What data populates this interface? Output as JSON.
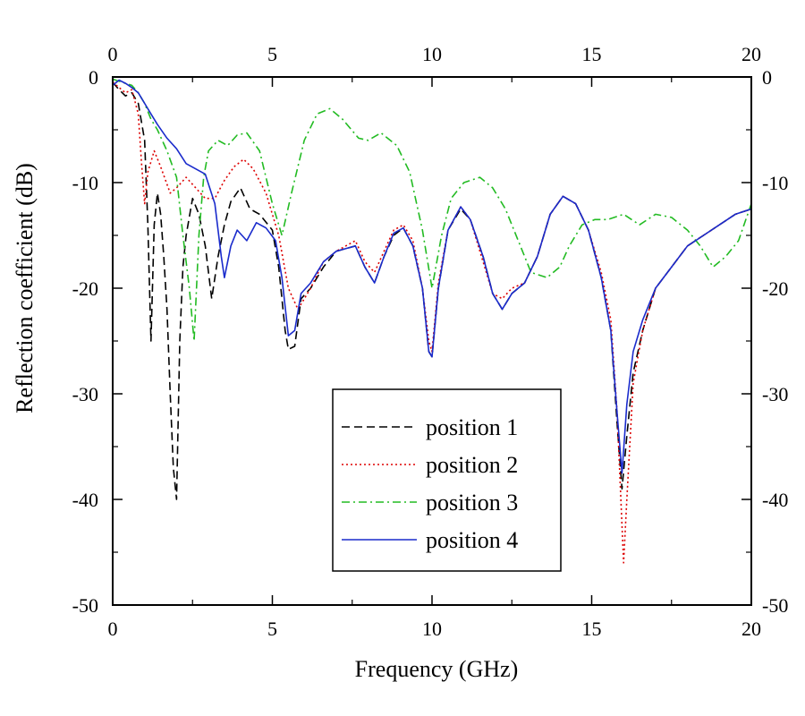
{
  "chart_data": {
    "type": "line",
    "title": "",
    "xlabel": "Frequency (GHz)",
    "ylabel": "Reflection coefficient (dB)",
    "xlim": [
      0,
      20
    ],
    "ylim": [
      -50,
      0
    ],
    "x_ticks": [
      0,
      5,
      10,
      15,
      20
    ],
    "y_ticks": [
      0,
      -10,
      -20,
      -30,
      -40,
      -50
    ],
    "x_tick_labels": [
      "0",
      "5",
      "10",
      "15",
      "20"
    ],
    "y_tick_labels": [
      "0",
      "-10",
      "-20",
      "-30",
      "-40",
      "-50"
    ],
    "top_axis_mirror": true,
    "right_axis_mirror": true,
    "grid": false,
    "legend_position": "bottom-center",
    "series": [
      {
        "name": "position 1",
        "color": "#000000",
        "dash": "dashed",
        "points": [
          [
            0,
            -0.5
          ],
          [
            0.2,
            -1.2
          ],
          [
            0.4,
            -1.8
          ],
          [
            0.6,
            -1.5
          ],
          [
            0.8,
            -2.5
          ],
          [
            1.0,
            -6
          ],
          [
            1.1,
            -14
          ],
          [
            1.2,
            -25
          ],
          [
            1.3,
            -14
          ],
          [
            1.4,
            -11
          ],
          [
            1.5,
            -13
          ],
          [
            1.6,
            -17
          ],
          [
            1.7,
            -22
          ],
          [
            1.8,
            -30
          ],
          [
            1.9,
            -37
          ],
          [
            2.0,
            -40
          ],
          [
            2.1,
            -25
          ],
          [
            2.2,
            -18
          ],
          [
            2.3,
            -15
          ],
          [
            2.5,
            -11.5
          ],
          [
            2.7,
            -13
          ],
          [
            2.9,
            -16
          ],
          [
            3.1,
            -21
          ],
          [
            3.3,
            -17
          ],
          [
            3.5,
            -14
          ],
          [
            3.7,
            -11.8
          ],
          [
            4.0,
            -10.5
          ],
          [
            4.3,
            -12.5
          ],
          [
            4.6,
            -13
          ],
          [
            5.0,
            -14.5
          ],
          [
            5.2,
            -18
          ],
          [
            5.4,
            -24
          ],
          [
            5.5,
            -25.8
          ],
          [
            5.7,
            -25.5
          ],
          [
            5.9,
            -21
          ],
          [
            6.2,
            -20
          ],
          [
            6.6,
            -18
          ],
          [
            7.0,
            -16.5
          ],
          [
            7.6,
            -16
          ],
          [
            7.9,
            -18
          ],
          [
            8.2,
            -19.5
          ],
          [
            8.5,
            -17
          ],
          [
            8.8,
            -15
          ],
          [
            9.1,
            -14.3
          ],
          [
            9.4,
            -16
          ],
          [
            9.7,
            -20
          ],
          [
            9.9,
            -26
          ],
          [
            10.0,
            -26.5
          ],
          [
            10.2,
            -20
          ],
          [
            10.5,
            -14.5
          ],
          [
            10.9,
            -12.5
          ],
          [
            11.2,
            -13.5
          ],
          [
            11.6,
            -17
          ],
          [
            11.9,
            -20.5
          ],
          [
            12.2,
            -22
          ],
          [
            12.5,
            -20.5
          ],
          [
            12.9,
            -19.5
          ],
          [
            13.3,
            -17
          ],
          [
            13.7,
            -13
          ],
          [
            14.1,
            -11.3
          ],
          [
            14.5,
            -12
          ],
          [
            14.9,
            -14.5
          ],
          [
            15.3,
            -19
          ],
          [
            15.6,
            -24
          ],
          [
            15.8,
            -33
          ],
          [
            15.95,
            -39
          ],
          [
            16.1,
            -34
          ],
          [
            16.3,
            -28
          ],
          [
            16.6,
            -24
          ],
          [
            17.0,
            -20
          ],
          [
            17.5,
            -18
          ],
          [
            18.0,
            -16
          ],
          [
            18.5,
            -15
          ],
          [
            19.0,
            -14
          ],
          [
            19.5,
            -13
          ],
          [
            20.0,
            -12.5
          ]
        ]
      },
      {
        "name": "position 2",
        "color": "#dd0000",
        "dash": "dotted",
        "points": [
          [
            0,
            -0.5
          ],
          [
            0.2,
            -1.0
          ],
          [
            0.4,
            -1.5
          ],
          [
            0.6,
            -1.2
          ],
          [
            0.8,
            -3.5
          ],
          [
            0.9,
            -8
          ],
          [
            1.0,
            -12
          ],
          [
            1.1,
            -9
          ],
          [
            1.3,
            -7
          ],
          [
            1.5,
            -8.5
          ],
          [
            1.8,
            -11
          ],
          [
            2.0,
            -10.5
          ],
          [
            2.3,
            -9.5
          ],
          [
            2.6,
            -10.5
          ],
          [
            2.9,
            -11.5
          ],
          [
            3.2,
            -11.5
          ],
          [
            3.5,
            -9.8
          ],
          [
            3.8,
            -8.5
          ],
          [
            4.1,
            -7.8
          ],
          [
            4.4,
            -8.7
          ],
          [
            4.8,
            -11
          ],
          [
            5.2,
            -15
          ],
          [
            5.5,
            -20
          ],
          [
            5.8,
            -22
          ],
          [
            6.2,
            -20
          ],
          [
            6.6,
            -17.5
          ],
          [
            7.0,
            -16.5
          ],
          [
            7.6,
            -15.5
          ],
          [
            7.9,
            -17.5
          ],
          [
            8.2,
            -18.5
          ],
          [
            8.5,
            -16.5
          ],
          [
            8.8,
            -14.5
          ],
          [
            9.1,
            -14
          ],
          [
            9.4,
            -15.5
          ],
          [
            9.7,
            -20
          ],
          [
            9.9,
            -25
          ],
          [
            10.0,
            -26
          ],
          [
            10.2,
            -19.5
          ],
          [
            10.5,
            -14.5
          ],
          [
            10.9,
            -12.3
          ],
          [
            11.2,
            -13.5
          ],
          [
            11.6,
            -17.5
          ],
          [
            11.9,
            -20.5
          ],
          [
            12.2,
            -21
          ],
          [
            12.5,
            -20
          ],
          [
            12.9,
            -19.5
          ],
          [
            13.3,
            -17
          ],
          [
            13.7,
            -13
          ],
          [
            14.1,
            -11.3
          ],
          [
            14.5,
            -12
          ],
          [
            14.9,
            -14.5
          ],
          [
            15.3,
            -18.5
          ],
          [
            15.6,
            -23
          ],
          [
            15.8,
            -32
          ],
          [
            16.0,
            -46
          ],
          [
            16.1,
            -40
          ],
          [
            16.3,
            -29
          ],
          [
            16.6,
            -24
          ],
          [
            17.0,
            -20
          ],
          [
            17.5,
            -18
          ],
          [
            18.0,
            -16
          ],
          [
            18.5,
            -15
          ],
          [
            19.0,
            -14
          ],
          [
            19.5,
            -13
          ],
          [
            20.0,
            -12.5
          ]
        ]
      },
      {
        "name": "position 3",
        "color": "#22bb22",
        "dash": "dashdot",
        "points": [
          [
            0,
            -0.2
          ],
          [
            0.3,
            -0.5
          ],
          [
            0.6,
            -0.8
          ],
          [
            0.8,
            -1.5
          ],
          [
            1.0,
            -2.5
          ],
          [
            1.2,
            -4
          ],
          [
            1.4,
            -5
          ],
          [
            1.7,
            -7
          ],
          [
            2.0,
            -9.5
          ],
          [
            2.2,
            -15
          ],
          [
            2.4,
            -20
          ],
          [
            2.55,
            -25
          ],
          [
            2.7,
            -15
          ],
          [
            2.85,
            -9.5
          ],
          [
            3.0,
            -7
          ],
          [
            3.3,
            -6
          ],
          [
            3.6,
            -6.5
          ],
          [
            3.9,
            -5.5
          ],
          [
            4.2,
            -5.3
          ],
          [
            4.6,
            -7
          ],
          [
            5.0,
            -12
          ],
          [
            5.3,
            -15
          ],
          [
            5.6,
            -11
          ],
          [
            6.0,
            -6
          ],
          [
            6.4,
            -3.5
          ],
          [
            6.8,
            -3
          ],
          [
            7.2,
            -4
          ],
          [
            7.7,
            -5.8
          ],
          [
            8.0,
            -6
          ],
          [
            8.4,
            -5.3
          ],
          [
            8.9,
            -6.5
          ],
          [
            9.3,
            -9
          ],
          [
            9.7,
            -14.5
          ],
          [
            10.0,
            -20
          ],
          [
            10.3,
            -15
          ],
          [
            10.6,
            -11.5
          ],
          [
            11.0,
            -10
          ],
          [
            11.5,
            -9.5
          ],
          [
            11.9,
            -10.5
          ],
          [
            12.3,
            -12.5
          ],
          [
            12.7,
            -15.5
          ],
          [
            13.1,
            -18.5
          ],
          [
            13.6,
            -19
          ],
          [
            14.0,
            -18
          ],
          [
            14.3,
            -16
          ],
          [
            14.7,
            -14
          ],
          [
            15.1,
            -13.5
          ],
          [
            15.5,
            -13.5
          ],
          [
            16.0,
            -13
          ],
          [
            16.5,
            -14
          ],
          [
            17.0,
            -13
          ],
          [
            17.5,
            -13.3
          ],
          [
            18.0,
            -14.5
          ],
          [
            18.4,
            -16
          ],
          [
            18.8,
            -18
          ],
          [
            19.2,
            -17
          ],
          [
            19.6,
            -15.5
          ],
          [
            20.0,
            -12
          ]
        ]
      },
      {
        "name": "position 4",
        "color": "#1a2bcc",
        "dash": "solid",
        "points": [
          [
            0,
            -0.8
          ],
          [
            0.2,
            -0.3
          ],
          [
            0.4,
            -0.6
          ],
          [
            0.6,
            -1.0
          ],
          [
            0.8,
            -1.5
          ],
          [
            1.0,
            -2.5
          ],
          [
            1.2,
            -3.5
          ],
          [
            1.4,
            -4.5
          ],
          [
            1.7,
            -5.8
          ],
          [
            2.0,
            -6.8
          ],
          [
            2.3,
            -8.2
          ],
          [
            2.6,
            -8.7
          ],
          [
            2.9,
            -9.2
          ],
          [
            3.2,
            -12
          ],
          [
            3.4,
            -17
          ],
          [
            3.5,
            -19
          ],
          [
            3.7,
            -16
          ],
          [
            3.9,
            -14.5
          ],
          [
            4.2,
            -15.5
          ],
          [
            4.5,
            -13.8
          ],
          [
            4.8,
            -14.3
          ],
          [
            5.1,
            -15.5
          ],
          [
            5.3,
            -19
          ],
          [
            5.5,
            -24.5
          ],
          [
            5.7,
            -24
          ],
          [
            5.9,
            -20.5
          ],
          [
            6.2,
            -19.5
          ],
          [
            6.6,
            -17.5
          ],
          [
            7.0,
            -16.5
          ],
          [
            7.6,
            -16
          ],
          [
            7.9,
            -18
          ],
          [
            8.2,
            -19.5
          ],
          [
            8.5,
            -17
          ],
          [
            8.8,
            -14.8
          ],
          [
            9.1,
            -14.3
          ],
          [
            9.4,
            -16
          ],
          [
            9.7,
            -20
          ],
          [
            9.9,
            -26
          ],
          [
            10.0,
            -26.5
          ],
          [
            10.2,
            -20
          ],
          [
            10.5,
            -14.5
          ],
          [
            10.9,
            -12.3
          ],
          [
            11.2,
            -13.5
          ],
          [
            11.6,
            -17
          ],
          [
            11.9,
            -20.5
          ],
          [
            12.2,
            -22
          ],
          [
            12.5,
            -20.5
          ],
          [
            12.9,
            -19.5
          ],
          [
            13.3,
            -17
          ],
          [
            13.7,
            -13
          ],
          [
            14.1,
            -11.3
          ],
          [
            14.5,
            -12
          ],
          [
            14.9,
            -14.5
          ],
          [
            15.3,
            -19
          ],
          [
            15.6,
            -24
          ],
          [
            15.8,
            -32
          ],
          [
            15.95,
            -37.5
          ],
          [
            16.1,
            -31
          ],
          [
            16.3,
            -26
          ],
          [
            16.6,
            -23
          ],
          [
            17.0,
            -20
          ],
          [
            17.5,
            -18
          ],
          [
            18.0,
            -16
          ],
          [
            18.5,
            -15
          ],
          [
            19.0,
            -14
          ],
          [
            19.5,
            -13
          ],
          [
            20.0,
            -12.5
          ]
        ]
      }
    ]
  }
}
